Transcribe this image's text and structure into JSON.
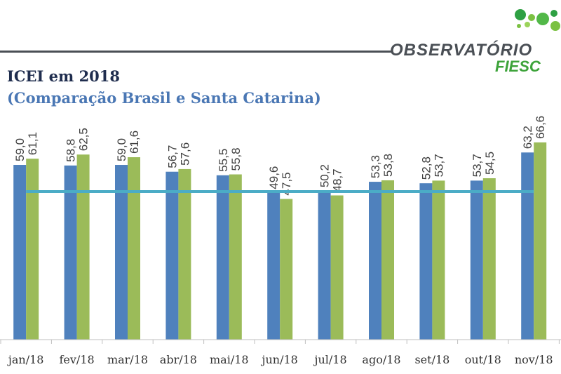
{
  "header": {
    "title": "ICEI em 2018",
    "subtitle": "(Comparação Brasil e Santa Catarina)",
    "logo_main": "OBSERVATÓRIO",
    "logo_sub": "FIESC"
  },
  "chart_data": {
    "type": "bar",
    "title": "ICEI em 2018",
    "subtitle": "(Comparação Brasil e Santa Catarina)",
    "categories": [
      "jan/18",
      "fev/18",
      "mar/18",
      "abr/18",
      "mai/18",
      "jun/18",
      "jul/18",
      "ago/18",
      "set/18",
      "out/18",
      "nov/18"
    ],
    "series": [
      {
        "values": [
          59.0,
          58.8,
          59.0,
          56.7,
          55.5,
          49.6,
          50.2,
          53.3,
          52.8,
          53.7,
          63.2
        ],
        "labels": [
          "59,0",
          "58,8",
          "59,0",
          "56,7",
          "55,5",
          "49,6",
          "50,2",
          "53,3",
          "52,8",
          "53,7",
          "63,2"
        ],
        "color": "#4f81bd"
      },
      {
        "values": [
          61.1,
          62.5,
          61.6,
          57.6,
          55.8,
          47.5,
          48.7,
          53.8,
          53.7,
          54.5,
          66.6
        ],
        "labels": [
          "61,1",
          "62,5",
          "61,6",
          "57,6",
          "55,8",
          "47,5",
          "48,7",
          "53,8",
          "53,7",
          "54,5",
          "66,6"
        ],
        "color": "#9bbb59"
      }
    ],
    "reference_line": {
      "value": 50,
      "color": "#4bacc6"
    },
    "ylim": [
      0,
      70
    ],
    "grid": false,
    "legend": "none"
  }
}
